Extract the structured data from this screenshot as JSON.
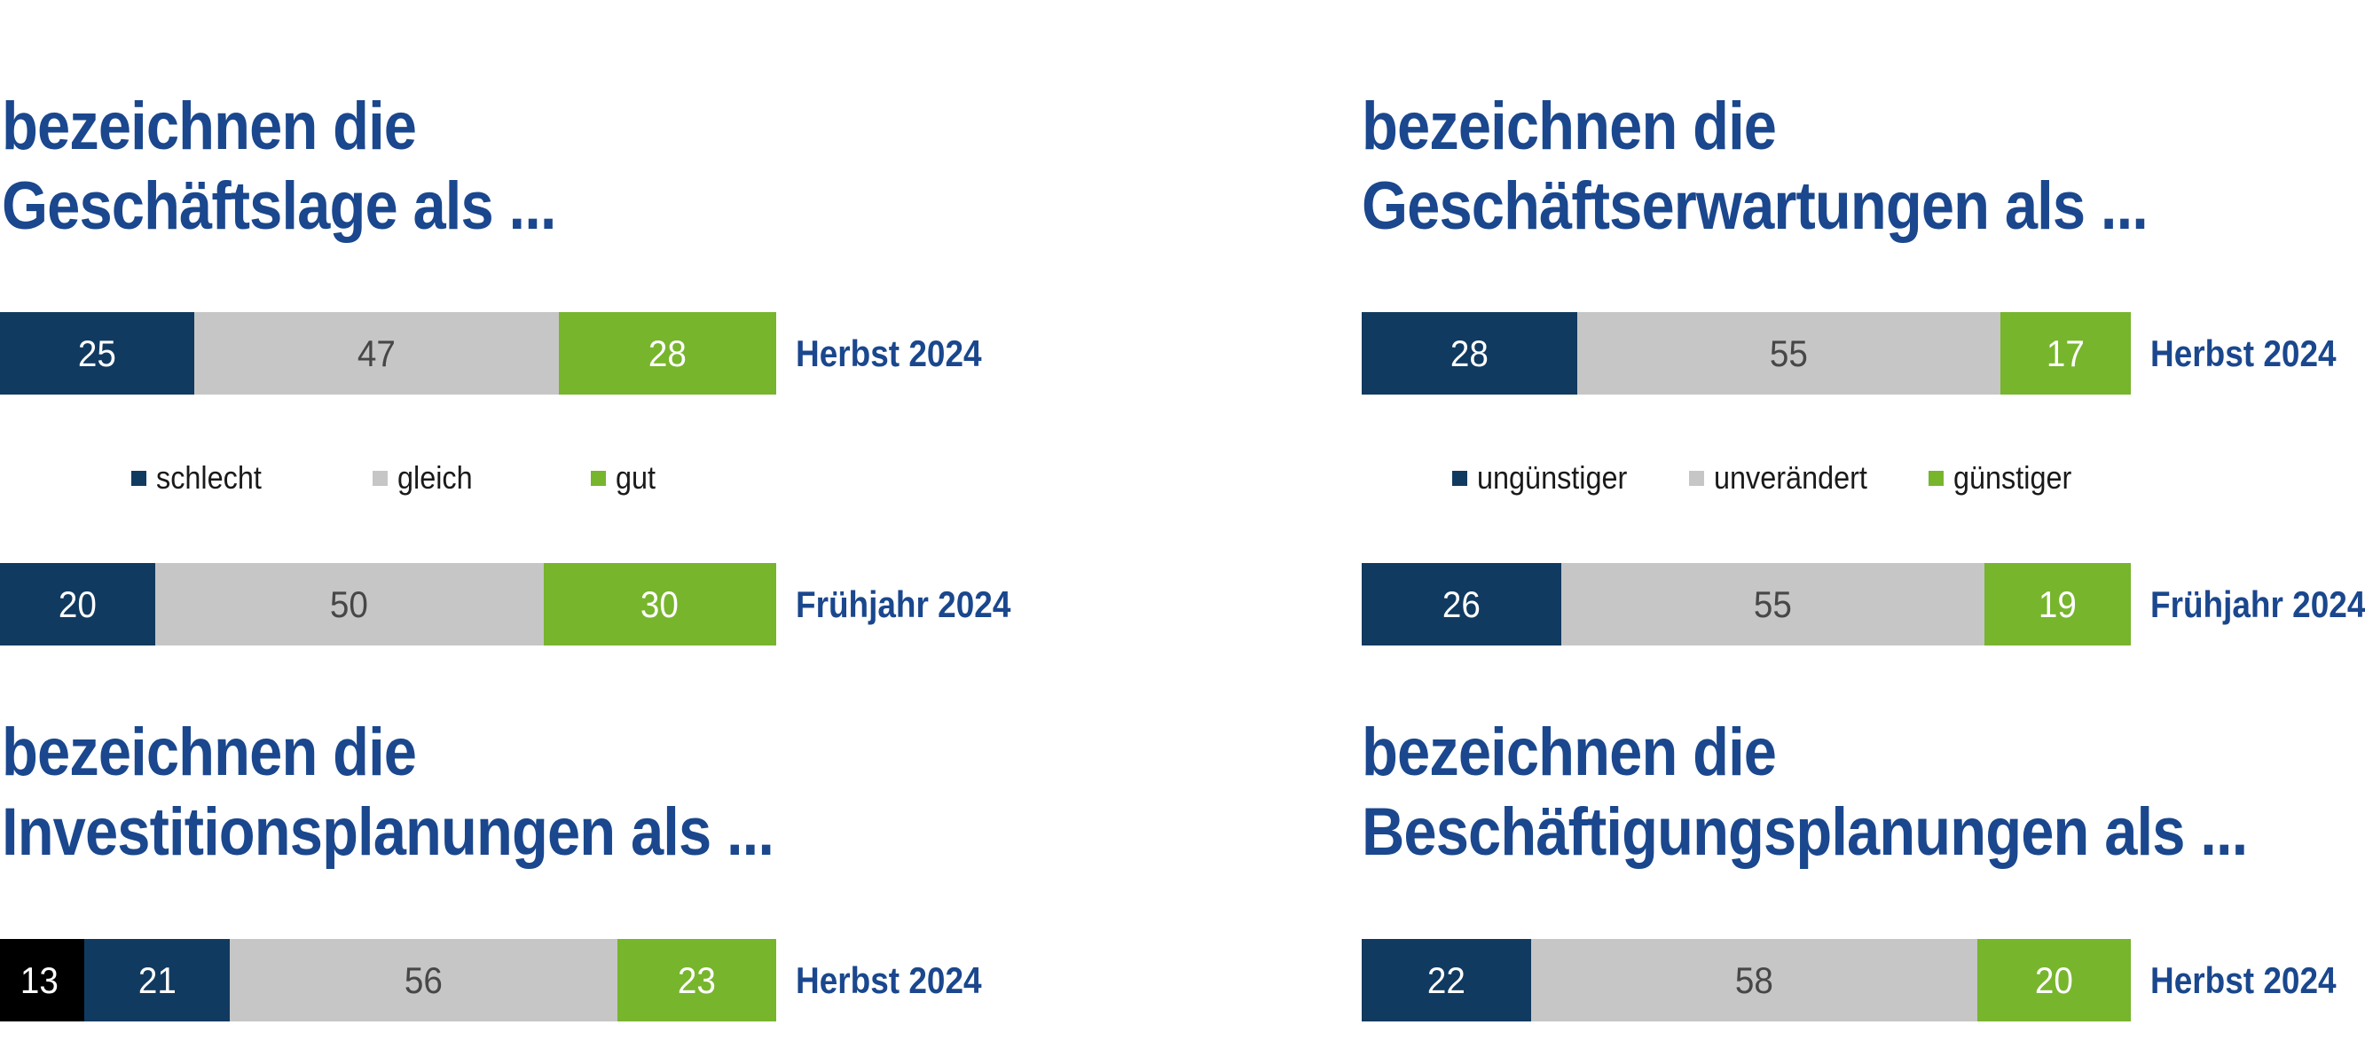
{
  "colors": {
    "navy": "#113a60",
    "gray": "#c6c6c6",
    "green": "#77b52d",
    "black": "#000000",
    "title_blue": "#1a478d",
    "value_light": "#ffffff",
    "value_dark": "#474747",
    "legend_text": "#1a1a1a",
    "background": "#ffffff"
  },
  "chart_data": [
    {
      "id": "geschaeftslage",
      "type": "bar",
      "stacked": true,
      "orientation": "horizontal",
      "title_line1": "bezeichnen die",
      "title_line2": "Geschäftslage als ...",
      "legend": [
        {
          "label": "schlecht",
          "color": "navy"
        },
        {
          "label": "gleich",
          "color": "gray"
        },
        {
          "label": "gut",
          "color": "green"
        }
      ],
      "rows": [
        {
          "label": "Herbst 2024",
          "segments": [
            {
              "value": 25,
              "color": "navy"
            },
            {
              "value": 47,
              "color": "gray"
            },
            {
              "value": 28,
              "color": "green"
            }
          ]
        },
        {
          "label": "Frühjahr 2024",
          "segments": [
            {
              "value": 20,
              "color": "navy"
            },
            {
              "value": 50,
              "color": "gray"
            },
            {
              "value": 30,
              "color": "green"
            }
          ]
        }
      ]
    },
    {
      "id": "geschaeftserwartungen",
      "type": "bar",
      "stacked": true,
      "orientation": "horizontal",
      "title_line1": "bezeichnen die",
      "title_line2": "Geschäftserwartungen als ...",
      "legend": [
        {
          "label": "ungünstiger",
          "color": "navy"
        },
        {
          "label": "unverändert",
          "color": "gray"
        },
        {
          "label": "günstiger",
          "color": "green"
        }
      ],
      "rows": [
        {
          "label": "Herbst 2024",
          "segments": [
            {
              "value": 28,
              "color": "navy"
            },
            {
              "value": 55,
              "color": "gray"
            },
            {
              "value": 17,
              "color": "green"
            }
          ]
        },
        {
          "label": "Frühjahr 2024",
          "segments": [
            {
              "value": 26,
              "color": "navy"
            },
            {
              "value": 55,
              "color": "gray"
            },
            {
              "value": 19,
              "color": "green"
            }
          ]
        }
      ]
    },
    {
      "id": "investitionsplanungen",
      "type": "bar",
      "stacked": true,
      "orientation": "horizontal",
      "title_line1": "bezeichnen die",
      "title_line2": "Investitionsplanungen als ...",
      "legend": [],
      "rows": [
        {
          "label": "Herbst 2024",
          "segments": [
            {
              "value": 13,
              "color": "black"
            },
            {
              "value": 21,
              "color": "navy"
            },
            {
              "value": 56,
              "color": "gray"
            },
            {
              "value": 23,
              "color": "green"
            }
          ]
        }
      ]
    },
    {
      "id": "beschaeftigungsplanungen",
      "type": "bar",
      "stacked": true,
      "orientation": "horizontal",
      "title_line1": "bezeichnen die",
      "title_line2": "Beschäftigungsplanungen als ...",
      "legend": [],
      "rows": [
        {
          "label": "Herbst 2024",
          "segments": [
            {
              "value": 22,
              "color": "navy"
            },
            {
              "value": 58,
              "color": "gray"
            },
            {
              "value": 20,
              "color": "green"
            }
          ]
        }
      ]
    }
  ]
}
